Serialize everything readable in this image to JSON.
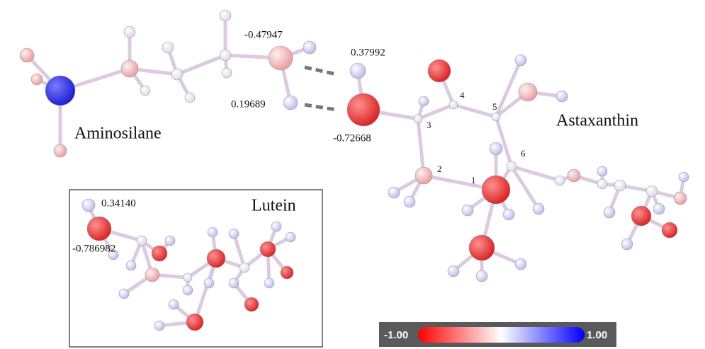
{
  "molecules": [
    {
      "name": "Aminosilane",
      "charges": [
        "-0.47947",
        "0.19689"
      ]
    },
    {
      "name": "Astaxanthin",
      "charges": [
        "0.37992",
        "-0.72668"
      ],
      "atom_numbers": [
        "1",
        "2",
        "3",
        "4",
        "5",
        "6"
      ]
    },
    {
      "name": "Lutein",
      "charges": [
        "0.34140",
        "-0.786982"
      ]
    }
  ],
  "color_bar": {
    "min": "-1.00",
    "max": "1.00"
  }
}
